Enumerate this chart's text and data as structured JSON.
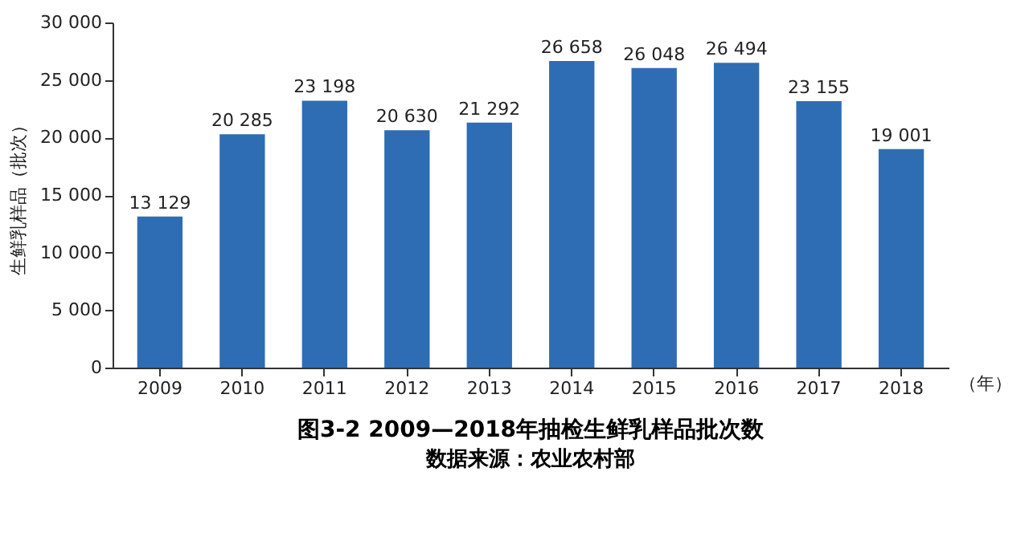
{
  "chart_data": {
    "type": "bar",
    "title": "图3-2   2009—2018年抽检生鲜乳样品批次数",
    "categories": [
      "2009",
      "2010",
      "2011",
      "2012",
      "2013",
      "2014",
      "2015",
      "2016",
      "2017",
      "2018"
    ],
    "values": [
      13129,
      20285,
      23198,
      20630,
      21292,
      26658,
      26048,
      26494,
      23155,
      19001
    ],
    "value_labels": [
      "13 129",
      "20 285",
      "23 198",
      "20 630",
      "21 292",
      "26 658",
      "26 048",
      "26 494",
      "23 155",
      "19 001"
    ],
    "color": "#2e6db4",
    "xlabel": "（年）",
    "ylabel": "生鲜乳样品（批次）",
    "ylim": [
      0,
      30000
    ],
    "yticks": [
      0,
      {
        "value": 5000,
        "label": "5 000"
      },
      {
        "value": 10000,
        "label": "10 000"
      },
      {
        "value": 15000,
        "label": "15 000"
      },
      {
        "value": 20000,
        "label": "20 000"
      },
      {
        "value": 25000,
        "label": "25 000"
      },
      {
        "value": 30000,
        "label": "30 000"
      }
    ],
    "grid": false,
    "annotations": [
      "数据来源：农业农村部"
    ]
  }
}
